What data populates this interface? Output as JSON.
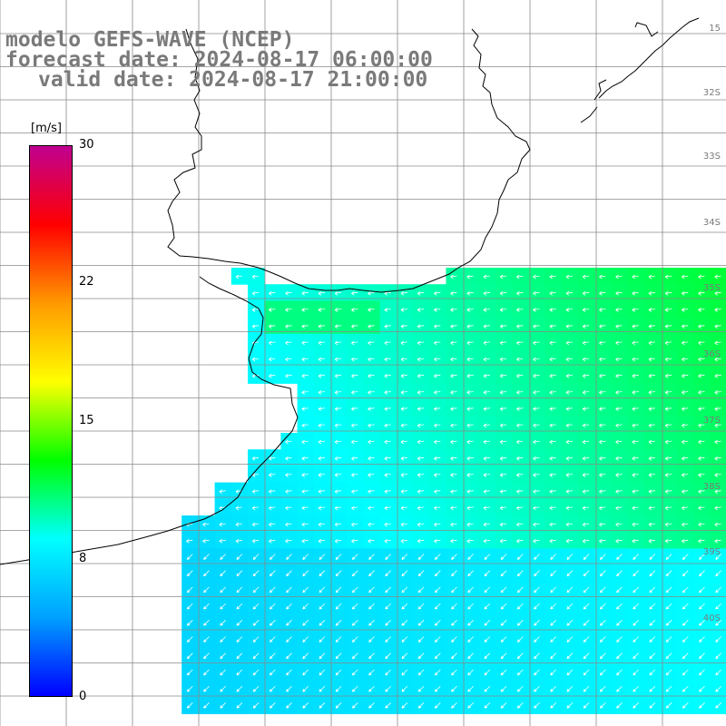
{
  "header": {
    "model_line": "modelo GEFS-WAVE (NCEP)",
    "forecast_line": "forecast date: 2024-08-17 06:00:00",
    "valid_line": "valid date: 2024-08-17 21:00:00"
  },
  "colorbar": {
    "unit": "[m/s]",
    "min": 0,
    "max": 30,
    "ticks": [
      "30",
      "22",
      "15",
      "8",
      "0"
    ],
    "stops": [
      "#0000ff",
      "#00a0ff",
      "#00ffff",
      "#00ff00",
      "#ffff00",
      "#ff9900",
      "#ff0000",
      "#c00090"
    ]
  },
  "latitude_labels": [
    "15",
    "32S",
    "33S",
    "34S",
    "35S",
    "36S",
    "37S",
    "38S",
    "39S",
    "40S"
  ],
  "colors": {
    "land": "#ffffff",
    "coastline": "#000000",
    "grid": "#8a8a8a",
    "arrows": "#ffffff",
    "title_text": "#7a7a7a"
  },
  "arrow_direction": "wind from north-east / east (south-westward arrows)"
}
